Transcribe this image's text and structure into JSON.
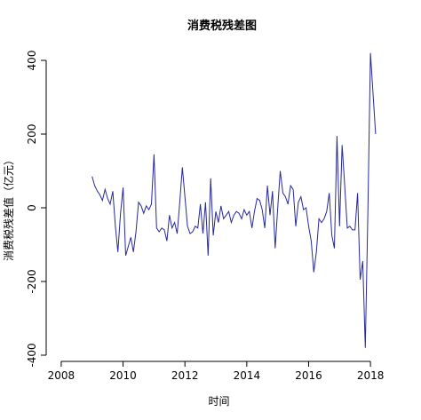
{
  "chart_data": {
    "type": "line",
    "title": "消费税残差图",
    "xlabel": "时间",
    "ylabel": "消费税残差值（亿元）",
    "xlim": [
      2007.6,
      2018.6
    ],
    "ylim": [
      -400,
      400
    ],
    "x_ticks": [
      2008,
      2010,
      2012,
      2014,
      2016,
      2018
    ],
    "y_ticks": [
      -400,
      -200,
      0,
      200,
      400
    ],
    "grid": false,
    "colors": {
      "series": "#27289a"
    },
    "series": [
      {
        "x": [
          2009.0,
          2009.083,
          2009.167,
          2009.25,
          2009.333,
          2009.417,
          2009.5,
          2009.583,
          2009.667,
          2009.75,
          2009.833,
          2009.917,
          2010.0,
          2010.083,
          2010.167,
          2010.25,
          2010.333,
          2010.417,
          2010.5,
          2010.583,
          2010.667,
          2010.75,
          2010.833,
          2010.917,
          2011.0,
          2011.083,
          2011.167,
          2011.25,
          2011.333,
          2011.417,
          2011.5,
          2011.583,
          2011.667,
          2011.75,
          2011.833,
          2011.917,
          2012.0,
          2012.083,
          2012.167,
          2012.25,
          2012.333,
          2012.417,
          2012.5,
          2012.583,
          2012.667,
          2012.75,
          2012.833,
          2012.917,
          2013.0,
          2013.083,
          2013.167,
          2013.25,
          2013.333,
          2013.417,
          2013.5,
          2013.583,
          2013.667,
          2013.75,
          2013.833,
          2013.917,
          2014.0,
          2014.083,
          2014.167,
          2014.25,
          2014.333,
          2014.417,
          2014.5,
          2014.583,
          2014.667,
          2014.75,
          2014.833,
          2014.917,
          2015.0,
          2015.083,
          2015.167,
          2015.25,
          2015.333,
          2015.417,
          2015.5,
          2015.583,
          2015.667,
          2015.75,
          2015.833,
          2015.917,
          2016.0,
          2016.083,
          2016.167,
          2016.25,
          2016.333,
          2016.417,
          2016.5,
          2016.583,
          2016.667,
          2016.75,
          2016.833,
          2016.917,
          2017.0,
          2017.083,
          2017.167,
          2017.25,
          2017.333,
          2017.417,
          2017.5,
          2017.583,
          2017.667,
          2017.75,
          2017.833,
          2017.917,
          2018.0,
          2018.083,
          2018.167
        ],
        "values": [
          85,
          60,
          45,
          35,
          20,
          50,
          25,
          10,
          45,
          -50,
          -120,
          -15,
          55,
          -130,
          -105,
          -80,
          -120,
          -65,
          15,
          5,
          -15,
          5,
          -5,
          10,
          145,
          -55,
          -65,
          -55,
          -60,
          -90,
          -20,
          -55,
          -40,
          -70,
          15,
          110,
          30,
          -50,
          -70,
          -65,
          -50,
          -55,
          10,
          -70,
          15,
          -130,
          80,
          -75,
          -10,
          -40,
          5,
          -30,
          -20,
          -10,
          -40,
          -20,
          -10,
          -15,
          -30,
          -5,
          -20,
          -10,
          -55,
          -10,
          25,
          20,
          -5,
          -55,
          60,
          -20,
          45,
          -110,
          0,
          100,
          40,
          30,
          10,
          60,
          50,
          -50,
          15,
          30,
          -5,
          0,
          -50,
          -90,
          -175,
          -120,
          -30,
          -40,
          -30,
          -10,
          40,
          -75,
          -110,
          195,
          -50,
          170,
          60,
          -55,
          -50,
          -60,
          -60,
          40,
          -195,
          -145,
          -380,
          -10,
          420,
          310,
          200
        ]
      }
    ]
  }
}
